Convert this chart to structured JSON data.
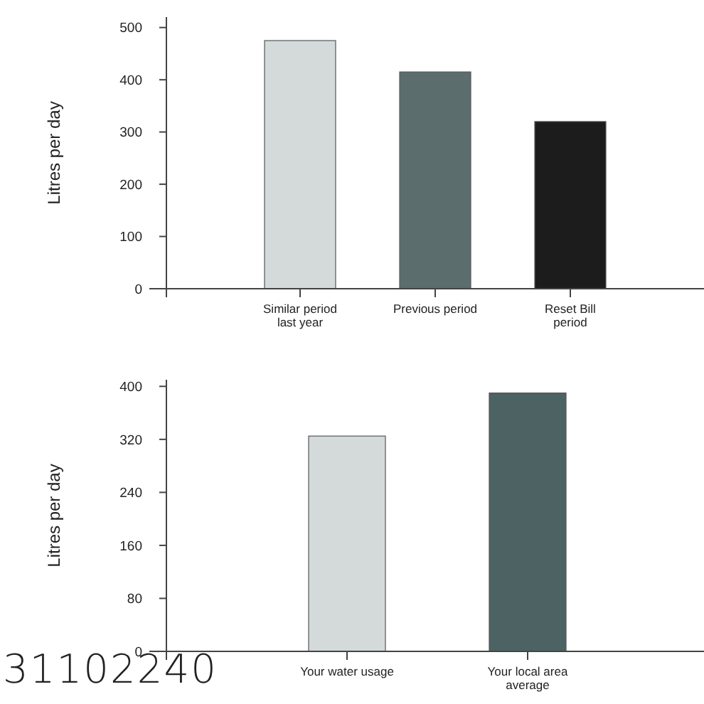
{
  "chart_data": [
    {
      "type": "bar",
      "ylabel": "Litres per day",
      "categories": [
        "Similar period last year",
        "Previous period",
        "Reset Bill period"
      ],
      "values": [
        475,
        415,
        320
      ],
      "colors": [
        "#d4d9d9",
        "#5b6d6d",
        "#1c1c1c"
      ],
      "ylim": [
        0,
        520
      ],
      "yticks": [
        0,
        100,
        200,
        300,
        400,
        500
      ],
      "grid": false
    },
    {
      "type": "bar",
      "ylabel": "Litres per day",
      "categories": [
        "Your water usage",
        "Your local area average"
      ],
      "values": [
        325,
        390
      ],
      "colors": [
        "#d4d9d9",
        "#4d6363"
      ],
      "ylim": [
        0,
        410
      ],
      "yticks": [
        0,
        80,
        160,
        240,
        320,
        400
      ],
      "grid": false,
      "annotations": [
        "31102240"
      ]
    }
  ]
}
